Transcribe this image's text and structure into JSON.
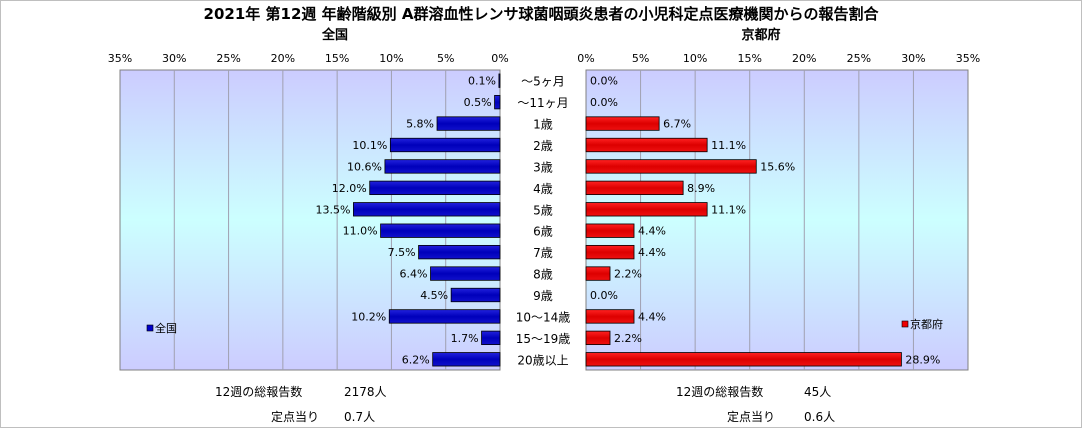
{
  "title": "2021年 第12週 年齢階級別 A群溶血性レンサ球菌咽頭炎患者の小児科定点医療機関からの報告割合",
  "chart_data": [
    {
      "type": "bar",
      "orientation": "horizontal",
      "direction": "right-to-left",
      "panel_title": "全国",
      "legend": "全国",
      "legend_position": "bottom-left",
      "xlim": [
        0,
        35
      ],
      "ticks": [
        "35%",
        "30%",
        "25%",
        "20%",
        "15%",
        "10%",
        "5%",
        "0%"
      ],
      "tick_values": [
        35,
        30,
        25,
        20,
        15,
        10,
        5,
        0
      ],
      "grid": true,
      "color": "#0000cc",
      "categories": [
        "〜5ヶ月",
        "〜11ヶ月",
        "1歳",
        "2歳",
        "3歳",
        "4歳",
        "5歳",
        "6歳",
        "7歳",
        "8歳",
        "9歳",
        "10〜14歳",
        "15〜19歳",
        "20歳以上"
      ],
      "values": [
        0.1,
        0.5,
        5.8,
        10.1,
        10.6,
        12.0,
        13.5,
        11.0,
        7.5,
        6.4,
        4.5,
        10.2,
        1.7,
        6.2
      ],
      "labels": [
        "0.1%",
        "0.5%",
        "5.8%",
        "10.1%",
        "10.6%",
        "12.0%",
        "13.5%",
        "11.0%",
        "7.5%",
        "6.4%",
        "4.5%",
        "10.2%",
        "1.7%",
        "6.2%"
      ]
    },
    {
      "type": "bar",
      "orientation": "horizontal",
      "direction": "left-to-right",
      "panel_title": "京都府",
      "legend": "京都府",
      "legend_position": "bottom-right",
      "xlim": [
        0,
        35
      ],
      "ticks": [
        "0%",
        "5%",
        "10%",
        "15%",
        "20%",
        "25%",
        "30%",
        "35%"
      ],
      "tick_values": [
        0,
        5,
        10,
        15,
        20,
        25,
        30,
        35
      ],
      "grid": true,
      "color": "#ee0000",
      "categories": [
        "〜5ヶ月",
        "〜11ヶ月",
        "1歳",
        "2歳",
        "3歳",
        "4歳",
        "5歳",
        "6歳",
        "7歳",
        "8歳",
        "9歳",
        "10〜14歳",
        "15〜19歳",
        "20歳以上"
      ],
      "values": [
        0.0,
        0.0,
        6.7,
        11.1,
        15.6,
        8.9,
        11.1,
        4.4,
        4.4,
        2.2,
        0.0,
        4.4,
        2.2,
        28.9
      ],
      "labels": [
        "0.0%",
        "0.0%",
        "6.7%",
        "11.1%",
        "15.6%",
        "8.9%",
        "11.1%",
        "4.4%",
        "4.4%",
        "2.2%",
        "0.0%",
        "4.4%",
        "2.2%",
        "28.9%"
      ]
    }
  ],
  "stats": {
    "national": {
      "total_label": "12週の総報告数",
      "total_value": "2178人",
      "per_label": "定点当り",
      "per_value": "0.7人"
    },
    "kyoto": {
      "total_label": "12週の総報告数",
      "total_value": "45人",
      "per_label": "定点当り",
      "per_value": "0.6人"
    }
  },
  "colors": {
    "plot_bg_edge": "#ccccff",
    "plot_bg_center": "#ccffff",
    "grid": "#a0a0b0"
  }
}
